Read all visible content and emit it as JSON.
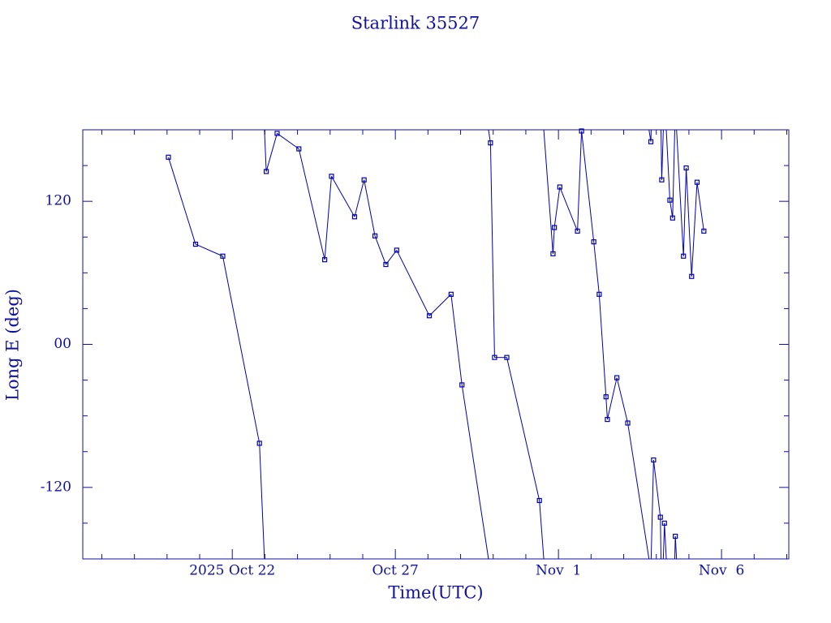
{
  "chart_data": {
    "type": "line",
    "title": "Starlink 35527",
    "x_label": "Time(UTC)",
    "y_label": "Long E (deg)",
    "x": [
      "2025-10-20T01:00",
      "2025-10-20T21:00",
      "2025-10-21T17:00",
      "2025-10-22T20:00",
      "2025-10-23T01:00",
      "2025-10-23T09:00",
      "2025-10-24T01:00",
      "2025-10-24T20:00",
      "2025-10-25T01:00",
      "2025-10-25T18:00",
      "2025-10-26T01:00",
      "2025-10-26T09:00",
      "2025-10-26T17:00",
      "2025-10-27T01:00",
      "2025-10-28T01:00",
      "2025-10-28T17:00",
      "2025-10-29T01:00",
      "2025-10-29T22:00",
      "2025-10-30T01:00",
      "2025-10-30T10:00",
      "2025-10-31T10:00",
      "2025-10-31T20:00",
      "2025-10-31T21:00",
      "2025-11-01T01:00",
      "2025-11-01T14:00",
      "2025-11-01T17:00",
      "2025-11-02T02:00",
      "2025-11-02T06:00",
      "2025-11-02T11:00",
      "2025-11-02T12:00",
      "2025-11-02T19:00",
      "2025-11-03T03:00",
      "2025-11-03T20:00",
      "2025-11-03T22:00",
      "2025-11-04T03:00",
      "2025-11-04T04:00",
      "2025-11-04T06:00",
      "2025-11-04T10:00",
      "2025-11-04T12:00",
      "2025-11-04T14:00",
      "2025-11-04T20:00",
      "2025-11-04T22:00",
      "2025-11-05T02:00",
      "2025-11-05T06:00",
      "2025-11-05T11:00"
    ],
    "series": [
      {
        "name": "Starlink 35527",
        "color": "#0000b0",
        "values": [
          157,
          84,
          74,
          -83,
          145,
          177,
          164,
          71,
          141,
          107,
          138,
          91,
          67,
          79,
          24,
          42,
          -34,
          169,
          -11,
          -11,
          -131,
          76,
          98,
          132,
          95,
          179,
          86,
          42,
          -44,
          -63,
          -28,
          -66,
          170,
          -97,
          -145,
          138,
          -150,
          121,
          106,
          -161,
          74,
          148,
          57,
          136,
          95
        ]
      }
    ],
    "xlim": [
      "2025-10-17T10:00",
      "2025-11-08T01:30"
    ],
    "xticks": [
      {
        "value": "2025-10-22",
        "label": "2025 Oct 22"
      },
      {
        "value": "2025-10-27",
        "label": "Oct 27"
      },
      {
        "value": "2025-11-01",
        "label": "Nov  1"
      },
      {
        "value": "2025-11-06",
        "label": "Nov  6"
      }
    ],
    "xminorticks": [
      "2025-10-18",
      "2025-10-19",
      "2025-10-20",
      "2025-10-21",
      "2025-10-23",
      "2025-10-24",
      "2025-10-25",
      "2025-10-26",
      "2025-10-28",
      "2025-10-29",
      "2025-10-30",
      "2025-10-31",
      "2025-11-02",
      "2025-11-03",
      "2025-11-04",
      "2025-11-05",
      "2025-11-07",
      "2025-11-08"
    ],
    "ylim": [
      -180,
      180
    ],
    "yticks": [
      -120,
      {
        "value": 0,
        "label": "00"
      },
      120
    ],
    "yminorticks": [
      -150,
      -90,
      -60,
      -30,
      30,
      60,
      90,
      150
    ],
    "wrap": true
  }
}
